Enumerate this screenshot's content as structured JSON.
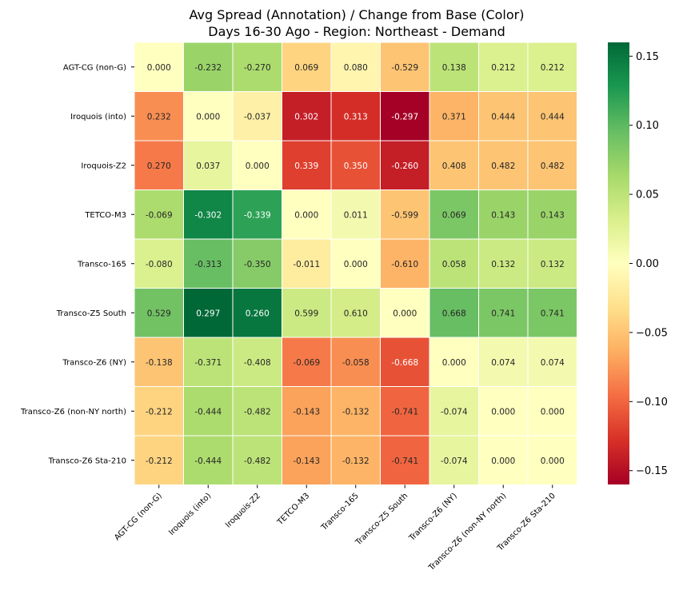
{
  "chart_data": {
    "type": "heatmap",
    "title_line1": "Avg Spread (Annotation) / Change from Base (Color)",
    "title_line2": "Days 16-30 Ago - Region: Northeast - Demand",
    "rows": [
      "AGT-CG (non-G)",
      "Iroquois (into)",
      "Iroquois-Z2",
      "TETCO-M3",
      "Transco-165",
      "Transco-Z5 South",
      "Transco-Z6 (NY)",
      "Transco-Z6 (non-NY north)",
      "Transco-Z6 Sta-210"
    ],
    "columns": [
      "AGT-CG (non-G)",
      "Iroquois (into)",
      "Iroquois-Z2",
      "TETCO-M3",
      "Transco-165",
      "Transco-Z5 South",
      "Transco-Z6 (NY)",
      "Transco-Z6 (non-NY north)",
      "Transco-Z6 Sta-210"
    ],
    "annotations": [
      [
        "0.000",
        "-0.232",
        "-0.270",
        "0.069",
        "0.080",
        "-0.529",
        "0.138",
        "0.212",
        "0.212"
      ],
      [
        "0.232",
        "0.000",
        "-0.037",
        "0.302",
        "0.313",
        "-0.297",
        "0.371",
        "0.444",
        "0.444"
      ],
      [
        "0.270",
        "0.037",
        "0.000",
        "0.339",
        "0.350",
        "-0.260",
        "0.408",
        "0.482",
        "0.482"
      ],
      [
        "-0.069",
        "-0.302",
        "-0.339",
        "0.000",
        "0.011",
        "-0.599",
        "0.069",
        "0.143",
        "0.143"
      ],
      [
        "-0.080",
        "-0.313",
        "-0.350",
        "-0.011",
        "0.000",
        "-0.610",
        "0.058",
        "0.132",
        "0.132"
      ],
      [
        "0.529",
        "0.297",
        "0.260",
        "0.599",
        "0.610",
        "0.000",
        "0.668",
        "0.741",
        "0.741"
      ],
      [
        "-0.138",
        "-0.371",
        "-0.408",
        "-0.069",
        "-0.058",
        "-0.668",
        "0.000",
        "0.074",
        "0.074"
      ],
      [
        "-0.212",
        "-0.444",
        "-0.482",
        "-0.143",
        "-0.132",
        "-0.741",
        "-0.074",
        "0.000",
        "0.000"
      ],
      [
        "-0.212",
        "-0.444",
        "-0.482",
        "-0.143",
        "-0.132",
        "-0.741",
        "-0.074",
        "0.000",
        "0.000"
      ]
    ],
    "color_values": [
      [
        0.0,
        0.07,
        0.06,
        -0.04,
        -0.01,
        -0.05,
        0.05,
        0.03,
        0.03
      ],
      [
        -0.08,
        0.0,
        -0.015,
        -0.14,
        -0.13,
        -0.16,
        -0.06,
        -0.05,
        -0.05
      ],
      [
        -0.09,
        0.02,
        0.0,
        -0.12,
        -0.11,
        -0.14,
        -0.05,
        -0.05,
        -0.05
      ],
      [
        0.06,
        0.14,
        0.12,
        0.0,
        0.01,
        -0.05,
        0.085,
        0.07,
        0.07
      ],
      [
        0.03,
        0.095,
        0.08,
        -0.02,
        0.0,
        -0.06,
        0.05,
        0.04,
        0.04
      ],
      [
        0.09,
        0.16,
        0.15,
        0.04,
        0.035,
        0.0,
        0.095,
        0.085,
        0.085
      ],
      [
        -0.05,
        0.05,
        0.04,
        -0.09,
        -0.08,
        -0.11,
        0.0,
        0.01,
        0.01
      ],
      [
        -0.04,
        0.06,
        0.05,
        -0.07,
        -0.06,
        -0.1,
        0.02,
        0.0,
        0.0
      ],
      [
        -0.04,
        0.06,
        0.05,
        -0.07,
        -0.06,
        -0.1,
        0.02,
        0.0,
        0.0
      ]
    ],
    "color_range": [
      -0.16,
      0.16
    ],
    "colormap": "RdYlGn",
    "colorbar_ticks": [
      0.15,
      0.1,
      0.05,
      0.0,
      -0.05,
      -0.1,
      -0.15
    ],
    "colorbar_tick_labels": [
      "0.15",
      "0.10",
      "0.05",
      "0.00",
      "−0.05",
      "−0.10",
      "−0.15"
    ],
    "grid_lines": "white",
    "legend": "colorbar-right"
  }
}
